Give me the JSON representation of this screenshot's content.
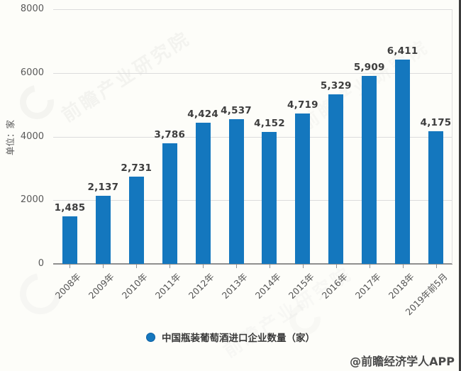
{
  "chart_data": {
    "type": "bar",
    "title": "",
    "categories": [
      "2008年",
      "2009年",
      "2010年",
      "2011年",
      "2012年",
      "2013年",
      "2014年",
      "2015年",
      "2016年",
      "2017年",
      "2018年",
      "2019年前5月"
    ],
    "values": [
      1485,
      2137,
      2731,
      3786,
      4424,
      4537,
      4152,
      4719,
      5329,
      5909,
      6411,
      4175
    ],
    "series_name": "中国瓶装葡萄酒进口企业数量（家）",
    "xlabel": "",
    "ylabel": "单位：家",
    "ylim": [
      0,
      8000
    ],
    "yticks": [
      0,
      2000,
      4000,
      6000,
      8000
    ],
    "grid": true,
    "legend_position": "bottom-center",
    "value_label_format": "thousands-comma",
    "bar_color": "#1477be"
  },
  "axis": {
    "y_unit_label": "单位：家"
  },
  "legend": {
    "label": "中国瓶装葡萄酒进口企业数量（家）",
    "marker_color": "#1577bd"
  },
  "watermark": {
    "text": "前瞻产业研究院"
  },
  "attribution": {
    "text": "@前瞻经济学人APP"
  },
  "colors": {
    "bar": "#1477be",
    "gridline": "#dcdcdc",
    "axis_line": "#8f8f8f",
    "value_label": "#3d3d3d",
    "tick_label": "#595959",
    "background": "#fdfdf9",
    "image_right_border": "#3c3c3c"
  }
}
